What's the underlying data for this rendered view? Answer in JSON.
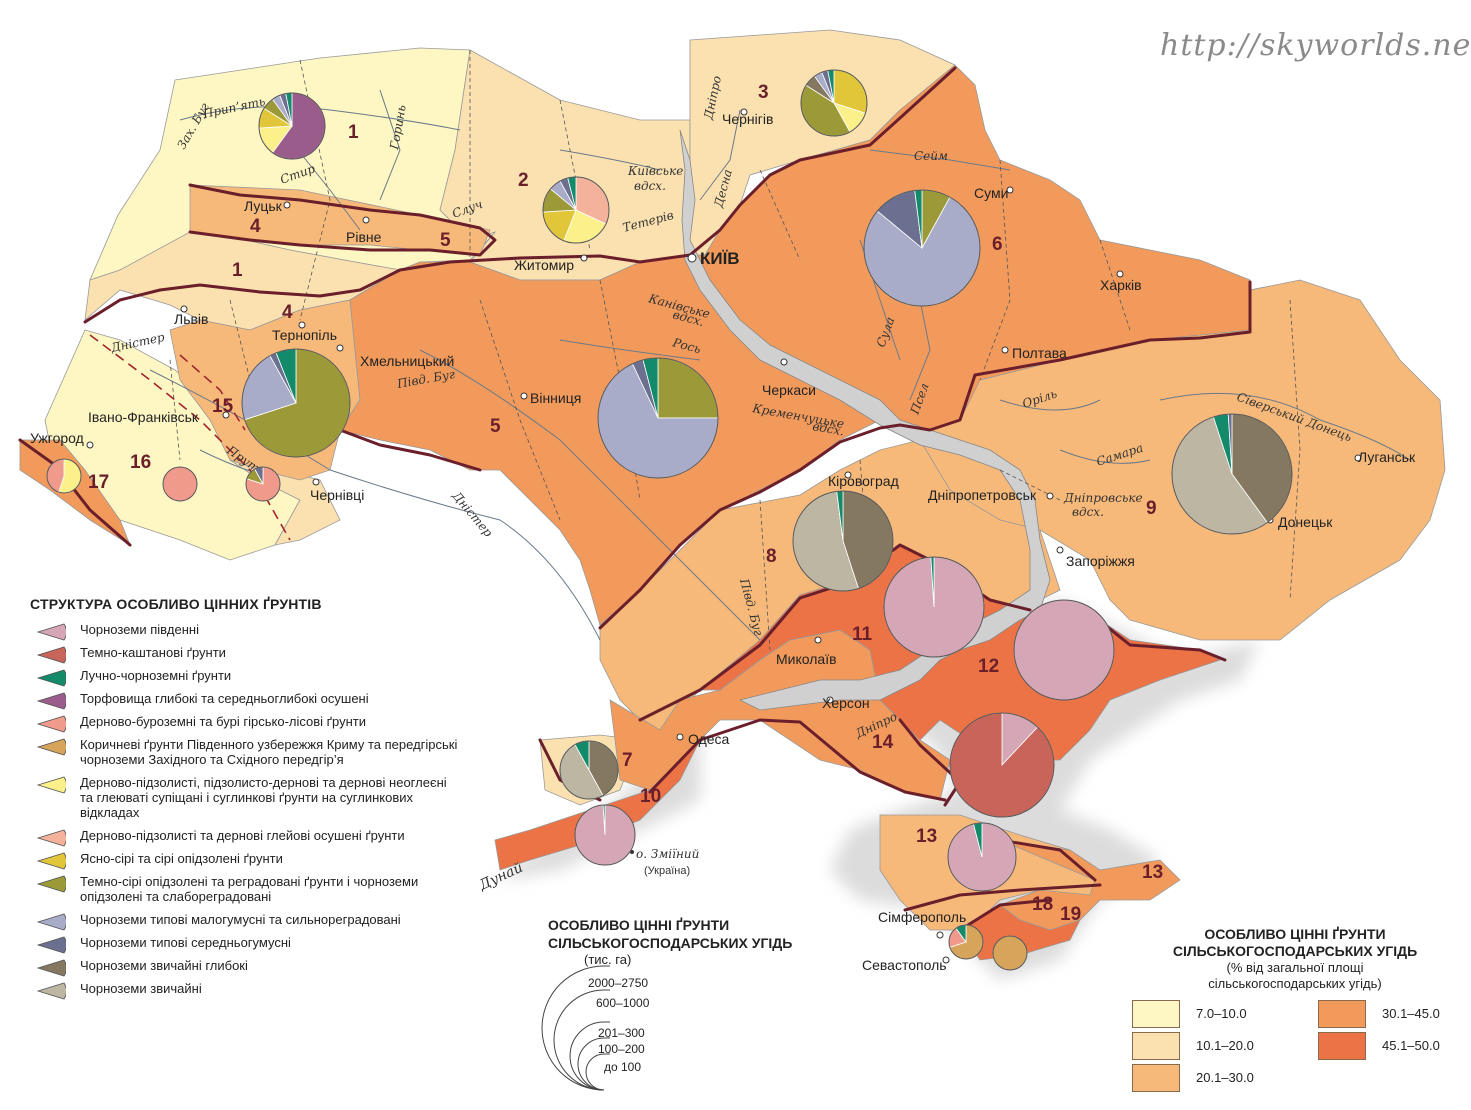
{
  "watermark": "http://skyworlds.net/",
  "colors": {
    "c7_10": "#fef7c3",
    "c10_20": "#fbe1b0",
    "c20_30": "#f7b97a",
    "c30_45": "#f29a5c",
    "c45_50": "#ec7346",
    "border": "#6b1f2b",
    "river": "#7a7a7a",
    "sea": "#d9d9d9"
  },
  "soil_types": [
    {
      "id": "pivdenni",
      "label": "Чорноземи південні",
      "color": "#d4a6b6"
    },
    {
      "id": "temnokashtan",
      "label": "Темно-каштанові ґрунти",
      "color": "#c8645a"
    },
    {
      "id": "luchno",
      "label": "Лучно-чорноземні ґрунти",
      "color": "#138a6a"
    },
    {
      "id": "torf",
      "label": "Торфовища глибокі та середньоглибокі осушені",
      "color": "#9a5c8a"
    },
    {
      "id": "derbur",
      "label": "Дерново-буроземні та бурі гірсько-лісові ґрунти",
      "color": "#ef9a8a"
    },
    {
      "id": "korychnevi",
      "label": "Коричневі ґрунти Південного узбережжя Криму та передгірські чорноземи Західного та Східного передгір’я",
      "color": "#d6a45a"
    },
    {
      "id": "dernpidz",
      "label": "Дерново-підзолисті, підзолисто-дернові та дернові неоглеєні та глеюваті супіщані і суглинкові ґрунти на суглинкових відкладах",
      "color": "#fbf08a"
    },
    {
      "id": "dernglei",
      "label": "Дерново-підзолисті та дернові глейові осушені ґрунти",
      "color": "#f4b29a"
    },
    {
      "id": "yasnosiri",
      "label": "Ясно-сірі та сірі опідзолені ґрунти",
      "color": "#e2c63a"
    },
    {
      "id": "temnosiri",
      "label": "Темно-сірі опідзолені та реградовані ґрунти і чорноземи опідзолені та слабореградовані",
      "color": "#9c9a38"
    },
    {
      "id": "typmalo",
      "label": "Чорноземи типові малогумусні та сильнореградовані",
      "color": "#a8acc8"
    },
    {
      "id": "typserednio",
      "label": "Чорноземи типові середньогумусні",
      "color": "#6c7090"
    },
    {
      "id": "zvychglyb",
      "label": "Чорноземи звичайні глибокі",
      "color": "#857860"
    },
    {
      "id": "zvych",
      "label": "Чорноземи звичайні",
      "color": "#bcb6a2"
    }
  ],
  "legend_structure": {
    "title": "СТРУКТУРА ОСОБЛИВО ЦІННИХ ҐРУНТІВ"
  },
  "legend_size": {
    "title_line1": "ОСОБЛИВО ЦІННІ ҐРУНТИ",
    "title_line2": "СІЛЬСЬКОГОСПОДАРСЬКИХ УГІДЬ",
    "unit": "(тис. га)",
    "classes": [
      "2000–2750",
      "600–1000",
      "201–300",
      "100–200",
      "до 100"
    ]
  },
  "legend_pct": {
    "title_line1": "ОСОБЛИВО ЦІННІ ҐРУНТИ",
    "title_line2": "СІЛЬСЬКОГОСПОДАРСЬКИХ УГІДЬ",
    "sub_line1": "(% від загальної площі",
    "sub_line2": "сільськогосподарських угідь)",
    "classes": [
      "7.0–10.0",
      "10.1–20.0",
      "20.1–30.0",
      "30.1–45.0",
      "45.1–50.0"
    ]
  },
  "cities": [
    {
      "id": "kyiv",
      "name": "КИЇВ"
    },
    {
      "id": "lutsk",
      "name": "Луцьк"
    },
    {
      "id": "rivne",
      "name": "Рівне"
    },
    {
      "id": "zhytomyr",
      "name": "Житомир"
    },
    {
      "id": "chernihiv",
      "name": "Чернігів"
    },
    {
      "id": "sumy",
      "name": "Суми"
    },
    {
      "id": "kharkiv",
      "name": "Харків"
    },
    {
      "id": "poltava",
      "name": "Полтава"
    },
    {
      "id": "lviv",
      "name": "Львів"
    },
    {
      "id": "ternopil",
      "name": "Тернопіль"
    },
    {
      "id": "khmelnytskyi",
      "name": "Хмельницький"
    },
    {
      "id": "vinnytsia",
      "name": "Вінниця"
    },
    {
      "id": "cherkasy",
      "name": "Черкаси"
    },
    {
      "id": "ivanofrankivsk",
      "name": "Івано-Франківськ"
    },
    {
      "id": "uzhhorod",
      "name": "Ужгород"
    },
    {
      "id": "chernivtsi",
      "name": "Чернівці"
    },
    {
      "id": "kirovohrad",
      "name": "Кіровоград"
    },
    {
      "id": "dnipro",
      "name": "Дніпропетровськ"
    },
    {
      "id": "zaporizhzhia",
      "name": "Запоріжжя"
    },
    {
      "id": "donetsk",
      "name": "Донецьк"
    },
    {
      "id": "luhansk",
      "name": "Луганськ"
    },
    {
      "id": "mykolaiv",
      "name": "Миколаїв"
    },
    {
      "id": "kherson",
      "name": "Херсон"
    },
    {
      "id": "odesa",
      "name": "Одеса"
    },
    {
      "id": "simferopol",
      "name": "Сімферополь"
    },
    {
      "id": "sevastopol",
      "name": "Севастополь"
    }
  ],
  "rivers": [
    {
      "id": "prypiat",
      "name": "Прип’ять"
    },
    {
      "id": "horyn",
      "name": "Горинь"
    },
    {
      "id": "styr",
      "name": "Стир"
    },
    {
      "id": "zakhbuh",
      "name": "Зах. Буг"
    },
    {
      "id": "sluch",
      "name": "Случ"
    },
    {
      "id": "teteriv",
      "name": "Тетерів"
    },
    {
      "id": "dnipro_n",
      "name": "Дніпро"
    },
    {
      "id": "desna",
      "name": "Десна"
    },
    {
      "id": "seim",
      "name": "Сейм"
    },
    {
      "id": "sula",
      "name": "Сула"
    },
    {
      "id": "psel",
      "name": "Псел"
    },
    {
      "id": "ros",
      "name": "Рось"
    },
    {
      "id": "pivdbuh",
      "name": "Півд. Буг"
    },
    {
      "id": "pivdbuh2",
      "name": "Півд. Буг"
    },
    {
      "id": "dnister",
      "name": "Дністер"
    },
    {
      "id": "dnister_w",
      "name": "Дністер"
    },
    {
      "id": "prut",
      "name": "Прут"
    },
    {
      "id": "oril",
      "name": "Оріль"
    },
    {
      "id": "samara",
      "name": "Самара"
    },
    {
      "id": "donets",
      "name": "Сіверський Донець"
    },
    {
      "id": "dnipro_s",
      "name": "Дніпро"
    },
    {
      "id": "dunai",
      "name": "Дунай"
    }
  ],
  "reservoirs": [
    {
      "id": "kyivske",
      "line1": "Київське",
      "line2": "вдсх."
    },
    {
      "id": "kanivske",
      "line1": "Канівське",
      "line2": "вдсх."
    },
    {
      "id": "kremenchuk",
      "line1": "Кременчуцьке",
      "line2": "вдсх."
    },
    {
      "id": "dniprovske",
      "line1": "Дніпровське",
      "line2": "вдсх."
    }
  ],
  "island": {
    "line1": "о. Зміїний",
    "line2": "(Україна)"
  },
  "regions": [
    {
      "id": "r1a",
      "number": "1"
    },
    {
      "id": "r1b",
      "number": "1"
    },
    {
      "id": "r2",
      "number": "2"
    },
    {
      "id": "r3",
      "number": "3"
    },
    {
      "id": "r4a",
      "number": "4"
    },
    {
      "id": "r4b",
      "number": "4"
    },
    {
      "id": "r5a",
      "number": "5"
    },
    {
      "id": "r5b",
      "number": "5"
    },
    {
      "id": "r6",
      "number": "6"
    },
    {
      "id": "r7",
      "number": "7"
    },
    {
      "id": "r8",
      "number": "8"
    },
    {
      "id": "r9",
      "number": "9"
    },
    {
      "id": "r10",
      "number": "10"
    },
    {
      "id": "r11",
      "number": "11"
    },
    {
      "id": "r12",
      "number": "12"
    },
    {
      "id": "r13a",
      "number": "13"
    },
    {
      "id": "r13b",
      "number": "13"
    },
    {
      "id": "r14",
      "number": "14"
    },
    {
      "id": "r15",
      "number": "15"
    },
    {
      "id": "r16",
      "number": "16"
    },
    {
      "id": "r17",
      "number": "17"
    },
    {
      "id": "r18",
      "number": "18"
    },
    {
      "id": "r19",
      "number": "19"
    }
  ],
  "pie_charts": [
    {
      "region": "1",
      "size_class": "201–300",
      "slices": [
        {
          "soil": "torf",
          "share": 60
        },
        {
          "soil": "dernpidz",
          "share": 14
        },
        {
          "soil": "yasnosiri",
          "share": 10
        },
        {
          "soil": "temnosiri",
          "share": 6
        },
        {
          "soil": "typmalo",
          "share": 4
        },
        {
          "soil": "typserednio",
          "share": 3
        },
        {
          "soil": "luchno",
          "share": 3
        }
      ]
    },
    {
      "region": "2",
      "size_class": "201–300",
      "slices": [
        {
          "soil": "dernglei",
          "share": 32
        },
        {
          "soil": "dernpidz",
          "share": 24
        },
        {
          "soil": "yasnosiri",
          "share": 18
        },
        {
          "soil": "temnosiri",
          "share": 12
        },
        {
          "soil": "typmalo",
          "share": 6
        },
        {
          "soil": "typserednio",
          "share": 4
        },
        {
          "soil": "luchno",
          "share": 4
        }
      ]
    },
    {
      "region": "3",
      "size_class": "201–300",
      "slices": [
        {
          "soil": "yasnosiri",
          "share": 30
        },
        {
          "soil": "dernpidz",
          "share": 12
        },
        {
          "soil": "temnosiri",
          "share": 42
        },
        {
          "soil": "zvychglyb",
          "share": 6
        },
        {
          "soil": "typmalo",
          "share": 4
        },
        {
          "soil": "typserednio",
          "share": 3
        },
        {
          "soil": "luchno",
          "share": 3
        }
      ]
    },
    {
      "region": "6",
      "size_class": "600–1000",
      "slices": [
        {
          "soil": "temnosiri",
          "share": 8
        },
        {
          "soil": "typmalo",
          "share": 78
        },
        {
          "soil": "typserednio",
          "share": 12
        },
        {
          "soil": "luchno",
          "share": 2
        }
      ]
    },
    {
      "region": "15",
      "size_class": "600–1000",
      "slices": [
        {
          "soil": "temnosiri",
          "share": 70
        },
        {
          "soil": "typmalo",
          "share": 22
        },
        {
          "soil": "typserednio",
          "share": 2
        },
        {
          "soil": "luchno",
          "share": 6
        }
      ]
    },
    {
      "region": "5",
      "size_class": "600–1000",
      "slices": [
        {
          "soil": "temnosiri",
          "share": 25
        },
        {
          "soil": "typmalo",
          "share": 68
        },
        {
          "soil": "typserednio",
          "share": 3
        },
        {
          "soil": "luchno",
          "share": 4
        }
      ]
    },
    {
      "region": "9",
      "size_class": "600–1000",
      "slices": [
        {
          "soil": "zvychglyb",
          "share": 40
        },
        {
          "soil": "zvych",
          "share": 55
        },
        {
          "soil": "luchno",
          "share": 4
        },
        {
          "soil": "typserednio",
          "share": 1
        }
      ]
    },
    {
      "region": "8",
      "size_class": "600–1000",
      "slices": [
        {
          "soil": "zvychglyb",
          "share": 45
        },
        {
          "soil": "zvych",
          "share": 53
        },
        {
          "soil": "luchno",
          "share": 2
        }
      ]
    },
    {
      "region": "11",
      "size_class": "600–1000",
      "slices": [
        {
          "soil": "pivdenni",
          "share": 99
        },
        {
          "soil": "luchno",
          "share": 1
        }
      ]
    },
    {
      "region": "12",
      "size_class": "600–1000",
      "slices": [
        {
          "soil": "pivdenni",
          "share": 100
        }
      ]
    },
    {
      "region": "14",
      "size_class": "600–1000",
      "slices": [
        {
          "soil": "pivdenni",
          "share": 12
        },
        {
          "soil": "temnokashtan",
          "share": 88
        }
      ]
    },
    {
      "region": "7",
      "size_class": "100–200",
      "slices": [
        {
          "soil": "zvychglyb",
          "share": 42
        },
        {
          "soil": "zvych",
          "share": 50
        },
        {
          "soil": "luchno",
          "share": 8
        }
      ]
    },
    {
      "region": "10",
      "size_class": "100–200",
      "slices": [
        {
          "soil": "pivdenni",
          "share": 99
        },
        {
          "soil": "luchno",
          "share": 1
        }
      ]
    },
    {
      "region": "13",
      "size_class": "201–300",
      "slices": [
        {
          "soil": "pivdenni",
          "share": 96
        },
        {
          "soil": "luchno",
          "share": 4
        }
      ]
    },
    {
      "region": "16",
      "size_class": "до 100",
      "slices": [
        {
          "soil": "derbur",
          "share": 100
        }
      ]
    },
    {
      "region": "16b",
      "size_class": "до 100",
      "slices": [
        {
          "soil": "derbur",
          "share": 80
        },
        {
          "soil": "temnosiri",
          "share": 12
        },
        {
          "soil": "typserednio",
          "share": 8
        }
      ]
    },
    {
      "region": "17",
      "size_class": "до 100",
      "slices": [
        {
          "soil": "dernpidz",
          "share": 55
        },
        {
          "soil": "derbur",
          "share": 45
        }
      ]
    },
    {
      "region": "18",
      "size_class": "до 100",
      "slices": [
        {
          "soil": "korychnevi",
          "share": 70
        },
        {
          "soil": "derbur",
          "share": 20
        },
        {
          "soil": "luchno",
          "share": 10
        }
      ]
    },
    {
      "region": "19",
      "size_class": "до 100",
      "slices": [
        {
          "soil": "korychnevi",
          "share": 100
        }
      ]
    }
  ]
}
